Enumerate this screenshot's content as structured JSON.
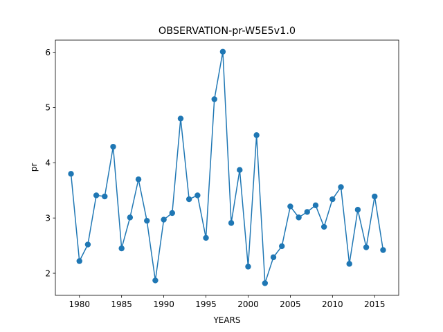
{
  "chart_data": {
    "type": "line",
    "title": "OBSERVATION-pr-W5E5v1.0",
    "xlabel": "YEARS",
    "ylabel": "pr",
    "xlim": [
      1977.15,
      2017.85
    ],
    "ylim": [
      1.6,
      6.22
    ],
    "xticks": [
      1980,
      1985,
      1990,
      1995,
      2000,
      2005,
      2010,
      2015
    ],
    "yticks": [
      2,
      3,
      4,
      5,
      6
    ],
    "grid": false,
    "line_color": "#1f77b4",
    "marker": "circle",
    "series": [
      {
        "x": [
          1979,
          1980,
          1981,
          1982,
          1983,
          1984,
          1985,
          1986,
          1987,
          1988,
          1989,
          1990,
          1991,
          1992,
          1993,
          1994,
          1995,
          1996,
          1997,
          1998,
          1999,
          2000,
          2001,
          2002,
          2003,
          2004,
          2005,
          2006,
          2007,
          2008,
          2009,
          2010,
          2011,
          2012,
          2013,
          2014,
          2015,
          2016
        ],
        "values": [
          3.8,
          2.22,
          2.52,
          3.41,
          3.39,
          4.29,
          2.45,
          3.01,
          3.7,
          2.95,
          1.87,
          2.97,
          3.09,
          4.8,
          3.34,
          3.41,
          2.64,
          5.15,
          6.01,
          2.91,
          3.87,
          2.12,
          4.5,
          1.82,
          2.29,
          2.49,
          3.21,
          3.01,
          3.11,
          3.23,
          2.84,
          3.34,
          3.56,
          2.17,
          3.15,
          2.47,
          3.39,
          2.42
        ]
      }
    ]
  }
}
